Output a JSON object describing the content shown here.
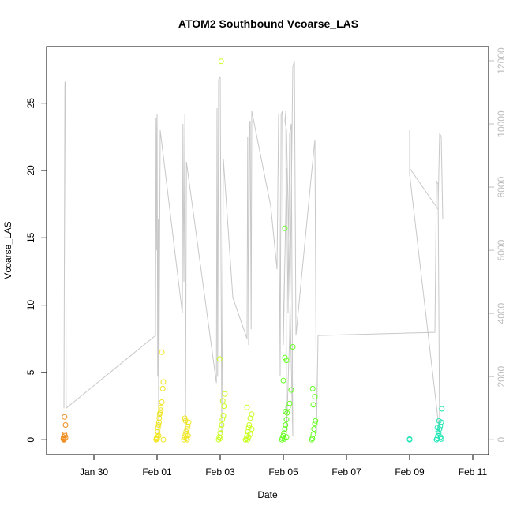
{
  "chart_data": {
    "type": "scatter",
    "title": "ATOM2 Southbound Vcoarse_LAS",
    "xlabel": "Date",
    "ylabel": "Vcoarse_LAS",
    "x_tick_labels": [
      "Jan 30",
      "Feb 01",
      "Feb 03",
      "Feb 05",
      "Feb 07",
      "Feb 09",
      "Feb 11"
    ],
    "x_ticks_days_from_jan30": [
      0,
      2,
      4,
      6,
      8,
      10,
      12
    ],
    "y_ticks": [
      0,
      5,
      10,
      15,
      20,
      25
    ],
    "y_range": [
      -1.1,
      29.2
    ],
    "y2_ticks": [
      0,
      2000,
      4000,
      6000,
      8000,
      10000,
      12000
    ],
    "y2_range": [
      -470,
      12450
    ],
    "x_range_days_from_jan30": [
      -1.5,
      12.5
    ],
    "grid": false,
    "legend": "none",
    "colors": {
      "secondary_line": "#c8c8c8",
      "secondary_axis": "#bdbdbd",
      "point_color_scale": [
        "#f08c1e",
        "#f0e61e",
        "#c8ff1e",
        "#64ff1e",
        "#1eff3c",
        "#1ee6b4"
      ]
    },
    "series": [
      {
        "kind": "points",
        "color_by": "time",
        "x": [
          -0.95,
          -0.95,
          -0.96,
          -0.92,
          -0.93,
          -0.97,
          -0.9,
          -0.93,
          -0.95,
          -0.9,
          1.97,
          1.98,
          2.0,
          2.01,
          2.02,
          2.03,
          2.05,
          2.06,
          2.07,
          2.1,
          2.12,
          2.15,
          2.18,
          2.2,
          2.0,
          2.05,
          2.08,
          2.12,
          2.15,
          2.2,
          2.85,
          2.87,
          2.9,
          2.92,
          2.95,
          2.97,
          3.0,
          2.88,
          2.93,
          2.98,
          2.9,
          2.95,
          3.95,
          3.97,
          4.0,
          4.02,
          4.05,
          4.07,
          4.1,
          4.12,
          4.15,
          3.98,
          4.03,
          4.08,
          4.0,
          4.8,
          4.83,
          4.85,
          4.88,
          4.9,
          4.92,
          4.95,
          5.0,
          4.85,
          4.9,
          4.95,
          5.0,
          4.87,
          5.95,
          5.97,
          6.0,
          6.02,
          6.05,
          6.07,
          6.1,
          6.12,
          6.15,
          6.2,
          6.25,
          6.0,
          6.05,
          6.1,
          6.3,
          6.05,
          6.1,
          6.07,
          6.03,
          6.9,
          6.92,
          6.95,
          6.97,
          7.0,
          7.02,
          6.95,
          7.0,
          6.93,
          10.0,
          10.0,
          10.85,
          10.87,
          10.9,
          10.92,
          10.95,
          10.97,
          11.0,
          11.02,
          10.88,
          10.93,
          10.98,
          11.0,
          10.9
        ],
        "y": [
          0.0,
          0.1,
          0.2,
          0.3,
          0.4,
          0.05,
          1.1,
          1.7,
          0.0,
          0.15,
          0.0,
          0.1,
          0.2,
          0.4,
          0.6,
          0.9,
          1.1,
          1.3,
          1.6,
          2.0,
          2.4,
          2.8,
          3.8,
          4.3,
          0.05,
          0.3,
          1.9,
          2.2,
          6.5,
          0.0,
          0.0,
          0.2,
          0.4,
          0.6,
          0.8,
          1.0,
          1.3,
          1.6,
          0.1,
          0.3,
          1.4,
          0.0,
          0.0,
          0.2,
          0.5,
          0.8,
          1.1,
          1.5,
          1.8,
          2.5,
          3.4,
          6.0,
          28.1,
          2.9,
          0.1,
          0.0,
          0.1,
          0.3,
          0.6,
          0.9,
          1.1,
          1.6,
          1.9,
          2.4,
          0.2,
          0.4,
          0.8,
          0.0,
          0.0,
          0.1,
          0.3,
          0.5,
          0.8,
          1.1,
          1.5,
          2.0,
          2.4,
          2.7,
          3.7,
          4.4,
          6.1,
          5.9,
          6.9,
          15.7,
          0.2,
          2.1,
          0.05,
          0.0,
          0.1,
          0.4,
          0.8,
          1.2,
          1.4,
          2.6,
          3.2,
          3.8,
          0.0,
          0.05,
          0.0,
          0.1,
          0.3,
          0.5,
          0.8,
          1.0,
          1.3,
          2.3,
          0.9,
          1.4,
          0.2,
          0.05,
          0.6
        ]
      }
    ]
  }
}
